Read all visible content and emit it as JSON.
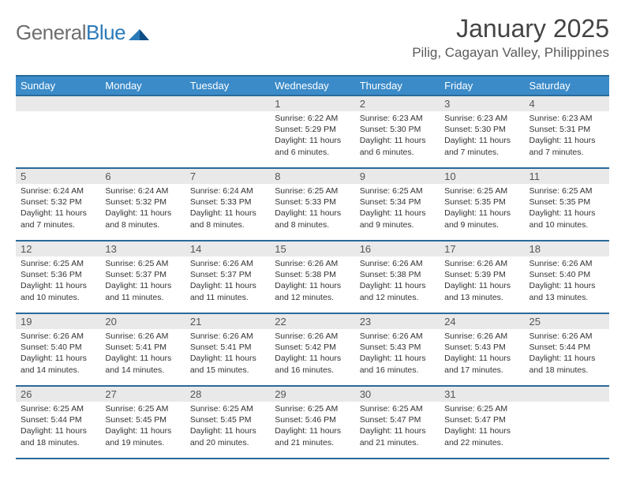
{
  "brand": {
    "name_part1": "General",
    "name_part2": "Blue"
  },
  "title": "January 2025",
  "location": "Pilig, Cagayan Valley, Philippines",
  "colors": {
    "header_bg": "#3b8bc9",
    "header_border": "#2a6a9a",
    "daynum_bg": "#e9e9e9",
    "text_dark": "#333333",
    "text_muted": "#555555",
    "brand_grey": "#6e6e6e",
    "brand_blue": "#2a7ab9"
  },
  "weekdays": [
    "Sunday",
    "Monday",
    "Tuesday",
    "Wednesday",
    "Thursday",
    "Friday",
    "Saturday"
  ],
  "weeks": [
    [
      null,
      null,
      null,
      {
        "n": "1",
        "sunrise": "6:22 AM",
        "sunset": "5:29 PM",
        "daylight": "11 hours and 6 minutes."
      },
      {
        "n": "2",
        "sunrise": "6:23 AM",
        "sunset": "5:30 PM",
        "daylight": "11 hours and 6 minutes."
      },
      {
        "n": "3",
        "sunrise": "6:23 AM",
        "sunset": "5:30 PM",
        "daylight": "11 hours and 7 minutes."
      },
      {
        "n": "4",
        "sunrise": "6:23 AM",
        "sunset": "5:31 PM",
        "daylight": "11 hours and 7 minutes."
      }
    ],
    [
      {
        "n": "5",
        "sunrise": "6:24 AM",
        "sunset": "5:32 PM",
        "daylight": "11 hours and 7 minutes."
      },
      {
        "n": "6",
        "sunrise": "6:24 AM",
        "sunset": "5:32 PM",
        "daylight": "11 hours and 8 minutes."
      },
      {
        "n": "7",
        "sunrise": "6:24 AM",
        "sunset": "5:33 PM",
        "daylight": "11 hours and 8 minutes."
      },
      {
        "n": "8",
        "sunrise": "6:25 AM",
        "sunset": "5:33 PM",
        "daylight": "11 hours and 8 minutes."
      },
      {
        "n": "9",
        "sunrise": "6:25 AM",
        "sunset": "5:34 PM",
        "daylight": "11 hours and 9 minutes."
      },
      {
        "n": "10",
        "sunrise": "6:25 AM",
        "sunset": "5:35 PM",
        "daylight": "11 hours and 9 minutes."
      },
      {
        "n": "11",
        "sunrise": "6:25 AM",
        "sunset": "5:35 PM",
        "daylight": "11 hours and 10 minutes."
      }
    ],
    [
      {
        "n": "12",
        "sunrise": "6:25 AM",
        "sunset": "5:36 PM",
        "daylight": "11 hours and 10 minutes."
      },
      {
        "n": "13",
        "sunrise": "6:25 AM",
        "sunset": "5:37 PM",
        "daylight": "11 hours and 11 minutes."
      },
      {
        "n": "14",
        "sunrise": "6:26 AM",
        "sunset": "5:37 PM",
        "daylight": "11 hours and 11 minutes."
      },
      {
        "n": "15",
        "sunrise": "6:26 AM",
        "sunset": "5:38 PM",
        "daylight": "11 hours and 12 minutes."
      },
      {
        "n": "16",
        "sunrise": "6:26 AM",
        "sunset": "5:38 PM",
        "daylight": "11 hours and 12 minutes."
      },
      {
        "n": "17",
        "sunrise": "6:26 AM",
        "sunset": "5:39 PM",
        "daylight": "11 hours and 13 minutes."
      },
      {
        "n": "18",
        "sunrise": "6:26 AM",
        "sunset": "5:40 PM",
        "daylight": "11 hours and 13 minutes."
      }
    ],
    [
      {
        "n": "19",
        "sunrise": "6:26 AM",
        "sunset": "5:40 PM",
        "daylight": "11 hours and 14 minutes."
      },
      {
        "n": "20",
        "sunrise": "6:26 AM",
        "sunset": "5:41 PM",
        "daylight": "11 hours and 14 minutes."
      },
      {
        "n": "21",
        "sunrise": "6:26 AM",
        "sunset": "5:41 PM",
        "daylight": "11 hours and 15 minutes."
      },
      {
        "n": "22",
        "sunrise": "6:26 AM",
        "sunset": "5:42 PM",
        "daylight": "11 hours and 16 minutes."
      },
      {
        "n": "23",
        "sunrise": "6:26 AM",
        "sunset": "5:43 PM",
        "daylight": "11 hours and 16 minutes."
      },
      {
        "n": "24",
        "sunrise": "6:26 AM",
        "sunset": "5:43 PM",
        "daylight": "11 hours and 17 minutes."
      },
      {
        "n": "25",
        "sunrise": "6:26 AM",
        "sunset": "5:44 PM",
        "daylight": "11 hours and 18 minutes."
      }
    ],
    [
      {
        "n": "26",
        "sunrise": "6:25 AM",
        "sunset": "5:44 PM",
        "daylight": "11 hours and 18 minutes."
      },
      {
        "n": "27",
        "sunrise": "6:25 AM",
        "sunset": "5:45 PM",
        "daylight": "11 hours and 19 minutes."
      },
      {
        "n": "28",
        "sunrise": "6:25 AM",
        "sunset": "5:45 PM",
        "daylight": "11 hours and 20 minutes."
      },
      {
        "n": "29",
        "sunrise": "6:25 AM",
        "sunset": "5:46 PM",
        "daylight": "11 hours and 21 minutes."
      },
      {
        "n": "30",
        "sunrise": "6:25 AM",
        "sunset": "5:47 PM",
        "daylight": "11 hours and 21 minutes."
      },
      {
        "n": "31",
        "sunrise": "6:25 AM",
        "sunset": "5:47 PM",
        "daylight": "11 hours and 22 minutes."
      },
      null
    ]
  ],
  "labels": {
    "sunrise": "Sunrise: ",
    "sunset": "Sunset: ",
    "daylight": "Daylight: "
  }
}
